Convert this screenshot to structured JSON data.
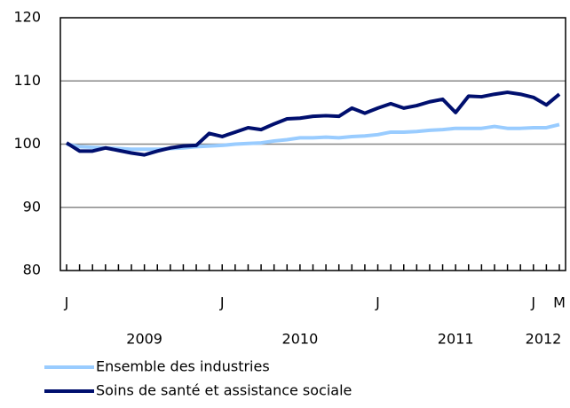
{
  "chart_data": {
    "type": "line",
    "categories": [
      "J",
      null,
      null,
      null,
      null,
      null,
      null,
      null,
      null,
      null,
      null,
      null,
      "J",
      null,
      null,
      null,
      null,
      null,
      null,
      null,
      null,
      null,
      null,
      null,
      "J",
      null,
      null,
      null,
      null,
      null,
      null,
      null,
      null,
      null,
      null,
      null,
      "J",
      null,
      "M"
    ],
    "x_group_labels": [
      "2009",
      "2010",
      "2011",
      "2012"
    ],
    "series": [
      {
        "name": "Ensemble des industries",
        "color": "#99ccff",
        "values": [
          100.0,
          99.6,
          99.5,
          99.4,
          99.3,
          99.2,
          99.2,
          99.2,
          99.3,
          99.4,
          99.6,
          99.7,
          99.8,
          100.0,
          100.1,
          100.2,
          100.5,
          100.7,
          101.0,
          101.0,
          101.1,
          101.0,
          101.2,
          101.3,
          101.5,
          101.9,
          101.9,
          102.0,
          102.2,
          102.3,
          102.5,
          102.5,
          102.5,
          102.8,
          102.5,
          102.5,
          102.6,
          102.6,
          103.1
        ]
      },
      {
        "name": "Soins de santé et assistance sociale",
        "color": "#000f6e",
        "values": [
          100.2,
          98.9,
          98.9,
          99.4,
          99.0,
          98.6,
          98.3,
          98.9,
          99.4,
          99.7,
          99.8,
          101.7,
          101.2,
          101.9,
          102.6,
          102.3,
          103.2,
          104.0,
          104.1,
          104.4,
          104.5,
          104.4,
          105.7,
          104.9,
          105.7,
          106.4,
          105.7,
          106.1,
          106.7,
          107.1,
          105.0,
          107.6,
          107.5,
          107.9,
          108.2,
          107.9,
          107.4,
          106.2,
          107.9
        ]
      }
    ],
    "ylim": [
      80,
      120
    ],
    "yticks": [
      80,
      90,
      100,
      110,
      120
    ],
    "grid": true
  }
}
